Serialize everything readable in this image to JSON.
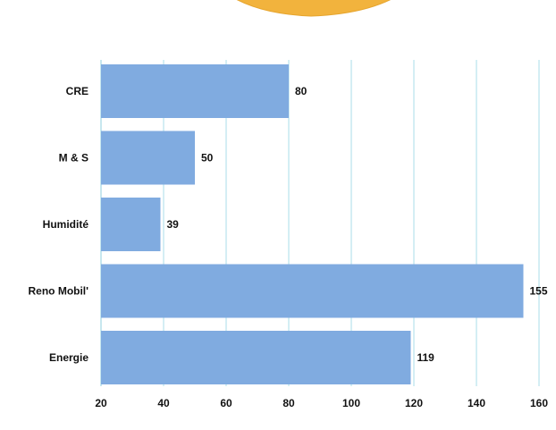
{
  "chart_data": {
    "type": "bar",
    "orientation": "horizontal",
    "categories": [
      "CRE",
      "M & S",
      "Humidité",
      "Reno Mobil'",
      "Energie"
    ],
    "values": [
      80,
      50,
      39,
      155,
      119
    ],
    "xlim": [
      20,
      160
    ],
    "xticks": [
      20,
      40,
      60,
      80,
      100,
      120,
      140,
      160
    ],
    "grid": true,
    "bar_color": "#80ABE0",
    "grid_color": "#A8DDE8",
    "decoration_color": "#F2B33D"
  }
}
